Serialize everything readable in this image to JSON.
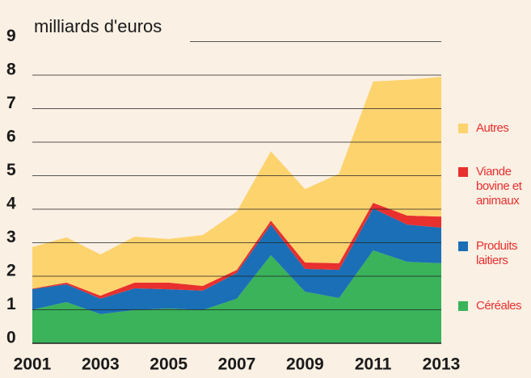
{
  "chart_data": {
    "type": "stacked-area",
    "title": "milliards d'euros",
    "x": [
      2001,
      2002,
      2003,
      2004,
      2005,
      2006,
      2007,
      2008,
      2009,
      2010,
      2011,
      2012,
      2013
    ],
    "series": [
      {
        "name": "Céréales",
        "color": "#3bb35a",
        "values": [
          1.0,
          1.23,
          0.87,
          0.99,
          1.04,
          0.99,
          1.33,
          2.63,
          1.54,
          1.35,
          2.77,
          2.43,
          2.39
        ]
      },
      {
        "name": "Produits laitiers",
        "color": "#1a6fb7",
        "values": [
          0.61,
          0.53,
          0.46,
          0.65,
          0.57,
          0.58,
          0.77,
          0.91,
          0.68,
          0.84,
          1.25,
          1.11,
          1.06
        ]
      },
      {
        "name": "Viande bovine et animaux",
        "color": "#e8302f",
        "values": [
          0.02,
          0.05,
          0.09,
          0.17,
          0.2,
          0.14,
          0.09,
          0.12,
          0.19,
          0.2,
          0.17,
          0.27,
          0.33
        ]
      },
      {
        "name": "Autres",
        "color": "#fdd36e",
        "values": [
          1.24,
          1.35,
          1.23,
          1.37,
          1.3,
          1.52,
          1.74,
          2.07,
          2.19,
          2.67,
          3.62,
          4.05,
          4.17
        ]
      }
    ],
    "xlim": [
      2001,
      2013
    ],
    "xticks": [
      2001,
      2003,
      2005,
      2007,
      2009,
      2011,
      2013
    ],
    "ylim": [
      0,
      9
    ],
    "yticks": [
      0,
      1,
      2,
      3,
      4,
      5,
      6,
      7,
      8,
      9
    ],
    "grid": true,
    "legend": "right"
  }
}
